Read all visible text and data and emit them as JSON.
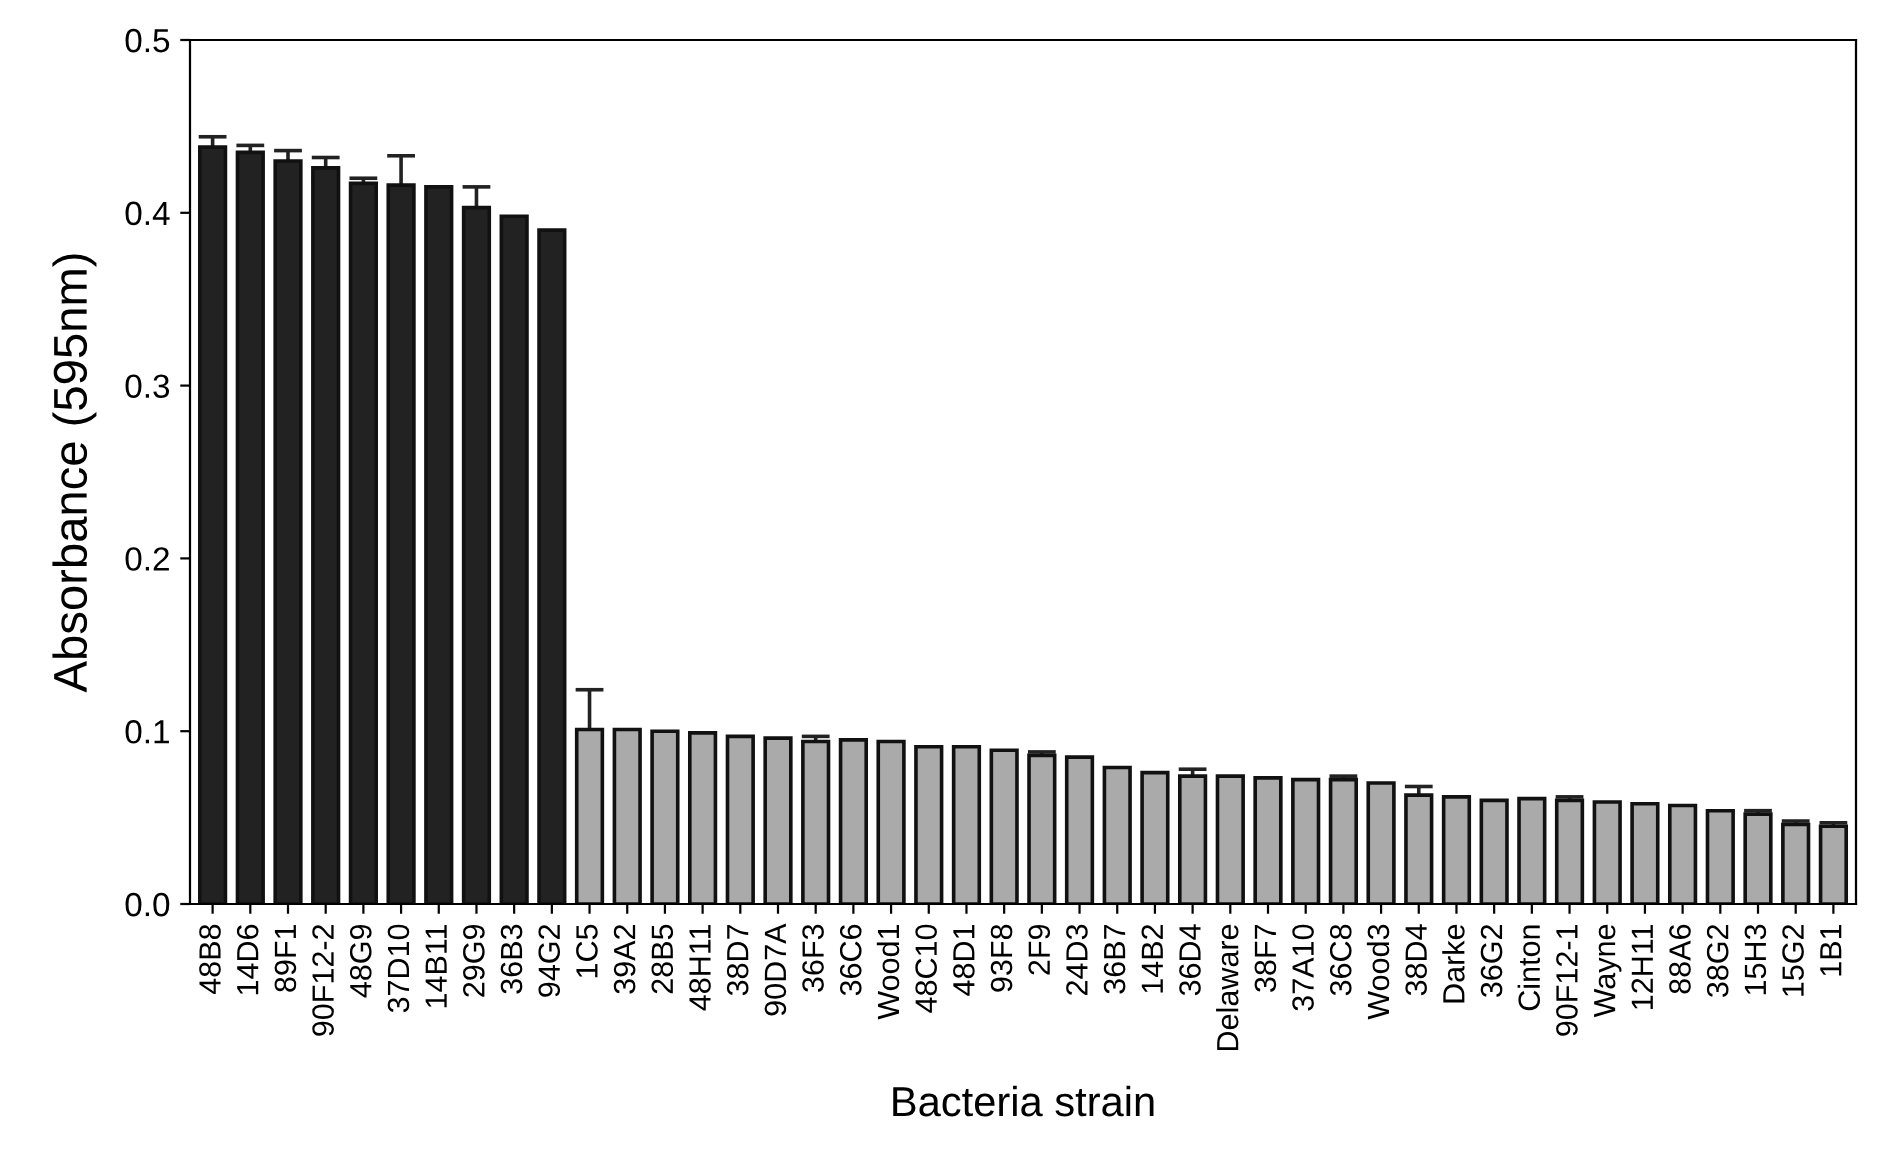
{
  "chart_data": {
    "type": "bar",
    "xlabel": "Bacteria strain",
    "ylabel": "Absorbance (595nm)",
    "categories": [
      "48B8",
      "14D6",
      "89F1",
      "90F12-2",
      "48G9",
      "37D10",
      "14B11",
      "29G9",
      "36B3",
      "94G2",
      "1C5",
      "39A2",
      "28B5",
      "48H11",
      "38D7",
      "90D7A",
      "36F3",
      "36C6",
      "Wood1",
      "48C10",
      "48D1",
      "93F8",
      "2F9",
      "24D3",
      "36B7",
      "14B2",
      "36D4",
      "Delaware",
      "38F7",
      "37A10",
      "36C8",
      "Wood3",
      "38D4",
      "Darke",
      "36G2",
      "Cinton",
      "90F12-1",
      "Wayne",
      "12H11",
      "88A6",
      "38G2",
      "15H3",
      "15G2",
      "1B1"
    ],
    "values": [
      0.438,
      0.435,
      0.43,
      0.426,
      0.417,
      0.416,
      0.415,
      0.403,
      0.398,
      0.39,
      0.101,
      0.101,
      0.1,
      0.099,
      0.097,
      0.096,
      0.094,
      0.095,
      0.094,
      0.091,
      0.091,
      0.089,
      0.086,
      0.085,
      0.079,
      0.076,
      0.074,
      0.074,
      0.073,
      0.072,
      0.072,
      0.07,
      0.063,
      0.062,
      0.06,
      0.061,
      0.06,
      0.059,
      0.058,
      0.057,
      0.054,
      0.052,
      0.046,
      0.045
    ],
    "errors": [
      0.006,
      0.004,
      0.006,
      0.006,
      0.003,
      0.017,
      null,
      0.012,
      null,
      null,
      0.023,
      null,
      null,
      null,
      null,
      null,
      0.003,
      null,
      null,
      null,
      null,
      null,
      0.002,
      null,
      null,
      null,
      0.004,
      null,
      null,
      null,
      0.002,
      null,
      0.005,
      null,
      null,
      null,
      0.002,
      null,
      null,
      null,
      null,
      0.002,
      0.002,
      0.002
    ],
    "colors": [
      "#222222",
      "#222222",
      "#222222",
      "#222222",
      "#222222",
      "#222222",
      "#222222",
      "#222222",
      "#222222",
      "#222222",
      "#aaaaaa",
      "#aaaaaa",
      "#aaaaaa",
      "#aaaaaa",
      "#aaaaaa",
      "#aaaaaa",
      "#aaaaaa",
      "#aaaaaa",
      "#aaaaaa",
      "#aaaaaa",
      "#aaaaaa",
      "#aaaaaa",
      "#aaaaaa",
      "#aaaaaa",
      "#aaaaaa",
      "#aaaaaa",
      "#aaaaaa",
      "#aaaaaa",
      "#aaaaaa",
      "#aaaaaa",
      "#aaaaaa",
      "#aaaaaa",
      "#aaaaaa",
      "#aaaaaa",
      "#aaaaaa",
      "#aaaaaa",
      "#aaaaaa",
      "#aaaaaa",
      "#aaaaaa",
      "#aaaaaa",
      "#aaaaaa",
      "#aaaaaa",
      "#aaaaaa",
      "#aaaaaa"
    ],
    "ylim": [
      0,
      0.5
    ],
    "yticks": [
      {
        "value": 0,
        "label": "0.0"
      },
      {
        "value": 0.1,
        "label": "0.1"
      },
      {
        "value": 0.2,
        "label": "0.2"
      },
      {
        "value": 0.3,
        "label": "0.3"
      },
      {
        "value": 0.4,
        "label": "0.4"
      },
      {
        "value": 0.5,
        "label": "0.5"
      }
    ],
    "grid": false,
    "legend": false
  }
}
